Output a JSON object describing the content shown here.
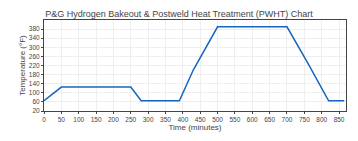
{
  "chart_data": {
    "type": "line",
    "title": "P&G Hydrogen Bakeout & Postweld Heat Treatment (PWHT) Chart",
    "x_label": "Time (minutes)",
    "y_label": "Temperature (°F)",
    "x": [
      0,
      50,
      100,
      200,
      250,
      280,
      310,
      390,
      430,
      500,
      600,
      700,
      760,
      820,
      865
    ],
    "values": [
      65,
      125,
      125,
      125,
      125,
      65,
      65,
      65,
      200,
      390,
      390,
      390,
      230,
      65,
      65
    ],
    "color": "#1565c0",
    "xlim": [
      0,
      870
    ],
    "ylim": [
      20,
      420
    ],
    "xticks": [
      0,
      50,
      100,
      150,
      200,
      250,
      300,
      350,
      400,
      450,
      500,
      550,
      600,
      650,
      700,
      750,
      800,
      850
    ],
    "yticks": [
      20,
      60,
      100,
      140,
      180,
      220,
      260,
      300,
      340,
      380
    ],
    "grid": true
  }
}
